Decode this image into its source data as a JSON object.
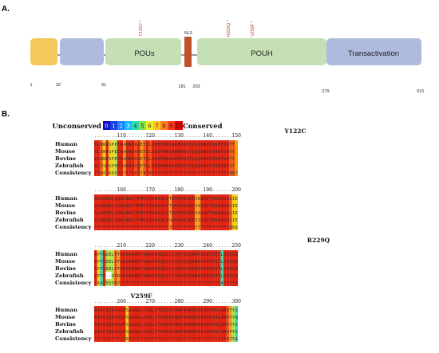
{
  "panel_a": {
    "label": "A.",
    "domains": [
      {
        "name": "",
        "color": "#f4c85c"
      },
      {
        "name": "",
        "color": "#aebbdf"
      },
      {
        "name": "POUs",
        "color": "#c5e0b5"
      },
      {
        "name": "",
        "color": "#c0522a"
      },
      {
        "name": "POUH",
        "color": "#c5e0b5"
      },
      {
        "name": "Transactivation",
        "color": "#aebbdf"
      }
    ],
    "nls_label": "NLS",
    "mutations": [
      "Y122C *",
      "R229Q *",
      "V259F *"
    ],
    "positions": [
      "1",
      "32",
      "91",
      "181",
      "203",
      "279",
      "631"
    ]
  },
  "panel_b": {
    "label": "B.",
    "legend": {
      "left": "Unconserved",
      "right": "Conserved",
      "digits": [
        "0",
        "1",
        "2",
        "3",
        "4",
        "5",
        "6",
        "7",
        "8",
        "9",
        "10"
      ],
      "colors": [
        "#1010c8",
        "#1a40e0",
        "#2080ff",
        "#18b8ff",
        "#28e0b0",
        "#88e050",
        "#f0f020",
        "#ffc020",
        "#ff8020",
        "#ff3818",
        "#e00000"
      ]
    },
    "species": [
      "Human",
      "Mouse",
      "Bovine",
      "Zebrafish",
      "Consistency"
    ],
    "blocks": [
      {
        "mutation": "Y122C",
        "ticks": [
          "110",
          "120",
          "130",
          "140",
          "150"
        ]
      },
      {
        "mutation": "",
        "ticks": [
          "160",
          "170",
          "180",
          "190",
          "200"
        ]
      },
      {
        "mutation": "R229Q",
        "ticks": [
          "210",
          "220",
          "230",
          "240",
          "250"
        ]
      },
      {
        "mutation": "V259F",
        "ticks": [
          "260",
          "270",
          "280",
          "290",
          "300"
        ]
      }
    ],
    "rows": [
      [
        "KLNNKSPPEAAHKKAVETLLQHDPWRVAKMVKSYLQQHNIPQREVVDTT",
        "KLSNKSPEEAAHKKAVETLLQHDPWRVAKMVKSYLQQHNIPQREVVDTT",
        "KLNNKSPEEAAHKKAVETLLQHDPWRVAKMVKSYLQQHNIPQREVVDTT",
        "KLSSKSPPESARRAQIETLLQHDPWRVAKMVKSYLQQHNIPQREVVEST",
        "99869665997999897898999999999999999999999999999887"
      ],
      [
        "GLNQSHLSQHLNKGTPMKTQKRAALYTWYVRKQREVAQQFTHAGQGGLIE",
        "GLNQSHLSQHLNKGTPMKTQKRAALYTWYVRKQREVAQQFTHAGQGGLIE",
        "GLNQSHLSQHLNKGTPMKTQKRAALYTWYVRKQREVAQQFTHAGQGGLIE",
        "GLNQSHLSQHLNKGTPMKTQKRAALYSWYVRKQREISQQFTHAGQGRLIE",
        "99999999999999999999999999799999999779999999999866"
      ],
      [
        "EPTGDELPTKKGRRNRFKWGPASQQILFQAYERQKNPSKEERETLVEECN",
        "EPTGDELPTKKGRRNRFKWGPASQQILFQAYERQKNPSKEERETLVEECN",
        "EPTGDELPTKKGRRNRFKWGPASQQILFQAYERQKNPSKEERETLVEECN",
        "EPTE--DVRKKGRRNRFKWGPASQQILFQAYERQKNPSKEERETLVEECN",
        "96495558799999999999999999999999999999999999499999"
      ],
      [
        "RAECIQRGVSPSQAQGLGSNLVTEVRVYNWFANRRKEEAFRHKLAMDTYS",
        "RAECIQRGVSPSQAQGLGSNLVTEVRVYNWFANRRKEEAFRHKLAMDTYN",
        "RAECIQRGVSPSQAQGLGSNLVTEVRVYNWFANRRKEEAFRHKLAMDTYS",
        "RAECIQRGVSPSQAQGLGSNLVTEVRVYNWFANRRKEEAFRHKLAMDPYS",
        "99999999999699999999999999999999999999999999998754"
      ]
    ]
  }
}
